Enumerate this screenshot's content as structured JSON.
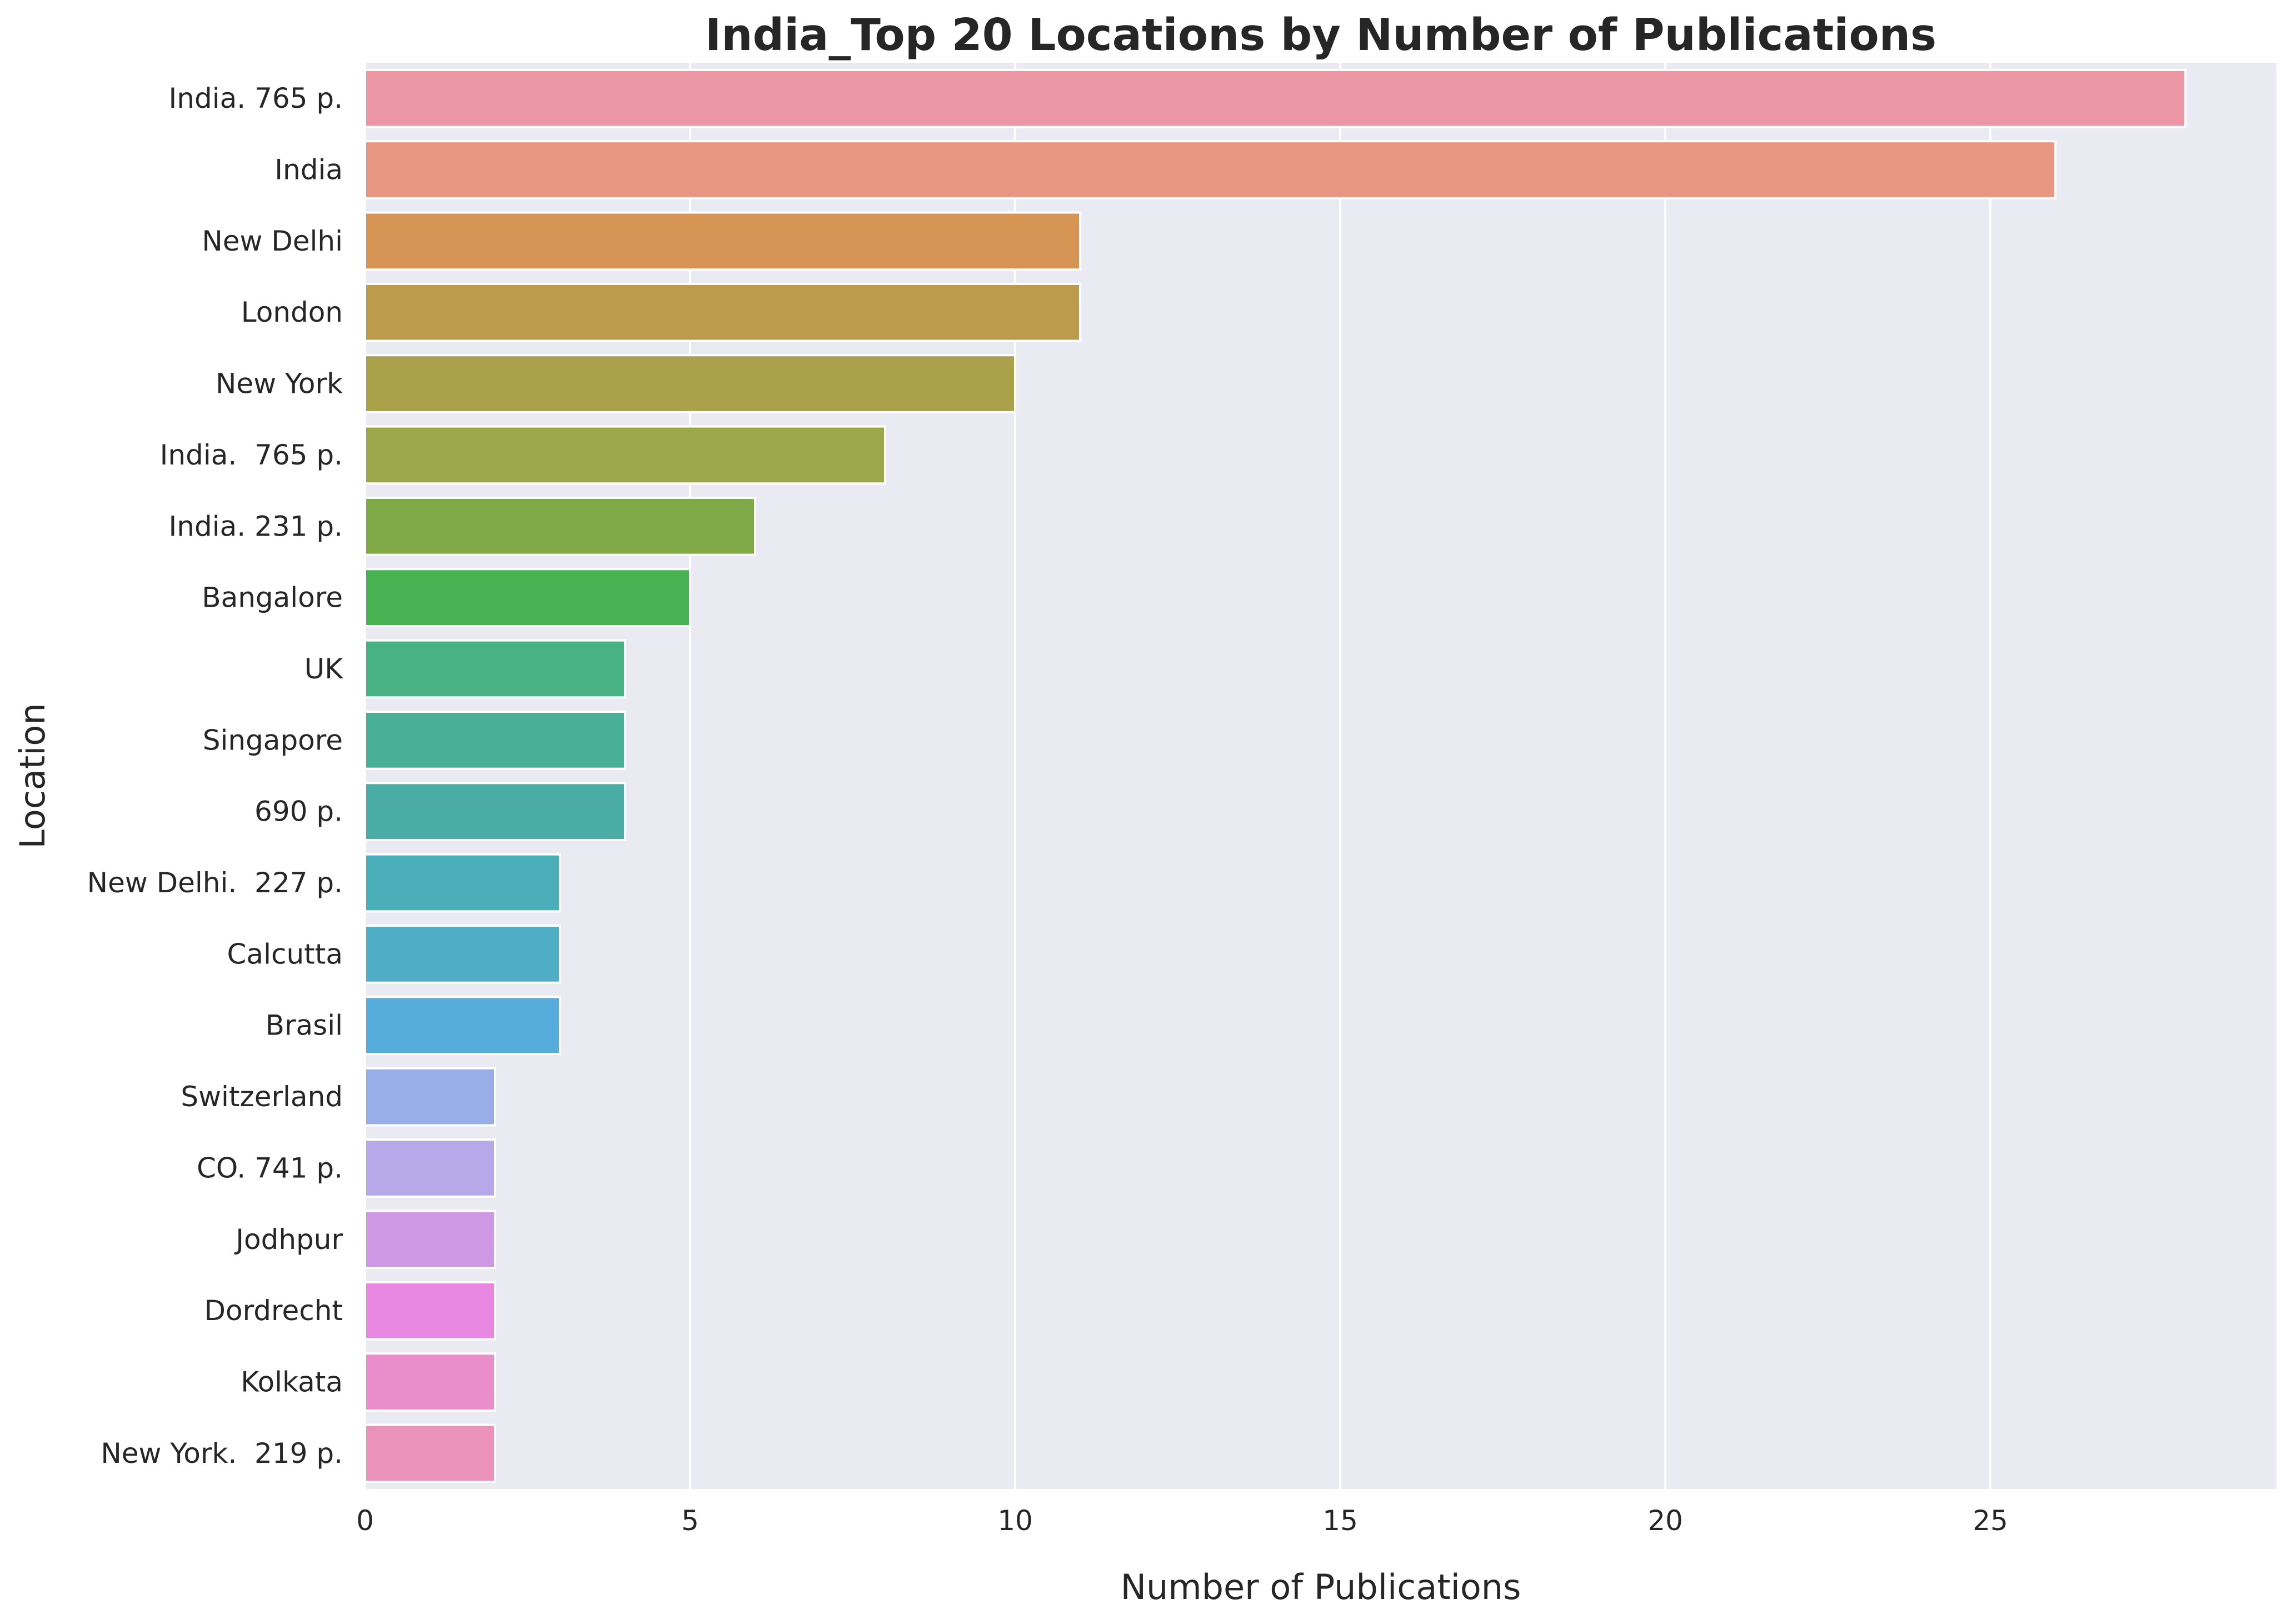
{
  "chart_data": {
    "type": "bar",
    "orientation": "horizontal",
    "title": "India_Top 20 Locations by Number of Publications",
    "xlabel": "Number of Publications",
    "ylabel": "Location",
    "xlim": [
      0,
      29.4
    ],
    "xticks": [
      0,
      5,
      10,
      15,
      20,
      25
    ],
    "grid": true,
    "background": "#eaeaf2",
    "grid_color": "#ffffff",
    "categories": [
      "India. 765 p.",
      "India",
      "New Delhi",
      "London",
      "New York",
      "India.  765 p.",
      "India. 231 p.",
      "Bangalore",
      "UK",
      "Singapore",
      "690 p.",
      "New Delhi.  227 p.",
      "Calcutta",
      "Brasil",
      "Switzerland",
      "CO. 741 p.",
      "Jodhpur",
      "Dordrecht",
      "Kolkata",
      "New York.  219 p."
    ],
    "values": [
      28,
      26,
      11,
      11,
      10,
      8,
      6,
      5,
      4,
      4,
      4,
      3,
      3,
      3,
      2,
      2,
      2,
      2,
      2,
      2
    ],
    "colors": [
      "#ea96a4",
      "#e89783",
      "#d69554",
      "#bd9b4c",
      "#aba14b",
      "#9aa74b",
      "#80a947",
      "#48b253",
      "#48b285",
      "#4aaf97",
      "#4aaca5",
      "#4bafba",
      "#4fadc5",
      "#56acda",
      "#98aee8",
      "#b7a8ea",
      "#cf98e4",
      "#e888e3",
      "#ea8ecb",
      "#ea92b9"
    ]
  }
}
